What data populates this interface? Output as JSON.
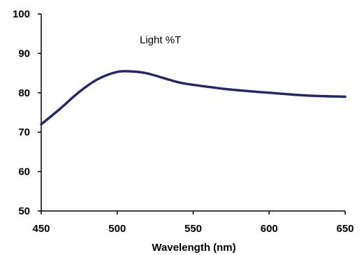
{
  "chart_data": {
    "type": "line",
    "title": "",
    "xlabel": "Wavelength (nm)",
    "ylabel": "",
    "xlim": [
      450,
      650
    ],
    "ylim": [
      50,
      100
    ],
    "xticks": [
      450,
      500,
      550,
      600,
      650
    ],
    "yticks": [
      50,
      60,
      70,
      80,
      90,
      100
    ],
    "grid": false,
    "annotation": "Light %T",
    "series": [
      {
        "name": "",
        "color": "#26266b",
        "x": [
          450,
          462,
          475,
          487,
          500,
          510,
          520,
          537,
          545,
          562,
          575,
          600,
          625,
          650
        ],
        "y": [
          72.0,
          75.8,
          80.2,
          83.4,
          85.3,
          85.4,
          84.9,
          83.0,
          82.3,
          81.4,
          80.8,
          80.0,
          79.3,
          79.0
        ]
      }
    ]
  }
}
